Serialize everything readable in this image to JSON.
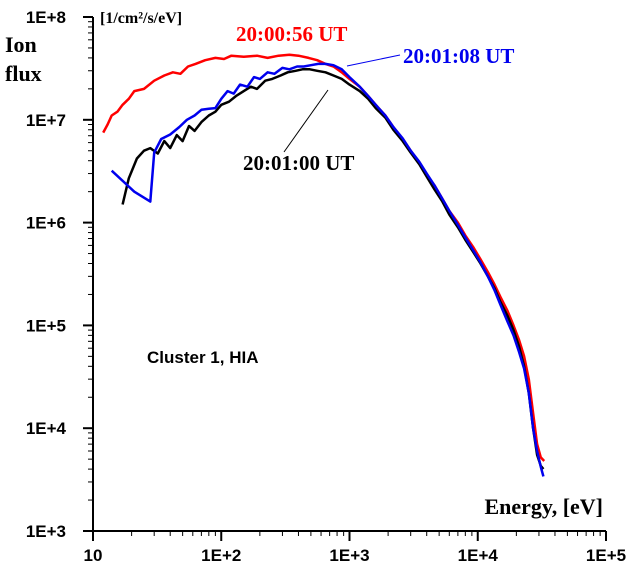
{
  "chart_data": {
    "type": "line",
    "x_scale": "log",
    "y_scale": "log",
    "xlim": [
      10,
      100000
    ],
    "ylim": [
      1000,
      100000000
    ],
    "x_ticks": [
      10,
      100,
      1000,
      10000,
      100000
    ],
    "x_tick_labels": [
      "10",
      "1E+2",
      "1E+3",
      "1E+4",
      "1E+5"
    ],
    "y_ticks": [
      1000,
      10000,
      100000,
      1000000,
      10000000,
      100000000
    ],
    "y_tick_labels": [
      "1E+3",
      "1E+4",
      "1E+5",
      "1E+6",
      "1E+7",
      "1E+8"
    ],
    "ylabel_line1": "Ion",
    "ylabel_line2": "flux",
    "yunit": "[1/cm²/s/eV]",
    "xlabel": "Energy, [eV]",
    "annotation": "Cluster 1, HIA",
    "grid": false,
    "series": [
      {
        "name": "20:00:56 UT",
        "color": "#ff0000",
        "points": [
          [
            12,
            7500000
          ],
          [
            13,
            9000000
          ],
          [
            14,
            11000000
          ],
          [
            15.5,
            12000000
          ],
          [
            17,
            14000000
          ],
          [
            19,
            16000000
          ],
          [
            21,
            19000000
          ],
          [
            25,
            20000000
          ],
          [
            30,
            24000000
          ],
          [
            36,
            27000000
          ],
          [
            42,
            29000000
          ],
          [
            48,
            28000000
          ],
          [
            55,
            33000000
          ],
          [
            63,
            35000000
          ],
          [
            75,
            38000000
          ],
          [
            90,
            40000000
          ],
          [
            105,
            39000000
          ],
          [
            120,
            42000000
          ],
          [
            150,
            41000000
          ],
          [
            190,
            42000000
          ],
          [
            230,
            40000000
          ],
          [
            280,
            42000000
          ],
          [
            340,
            43000000
          ],
          [
            400,
            42000000
          ],
          [
            480,
            40000000
          ],
          [
            560,
            38000000
          ],
          [
            650,
            35000000
          ],
          [
            750,
            33000000
          ],
          [
            870,
            29000000
          ],
          [
            1000,
            25000000
          ],
          [
            1200,
            21000000
          ],
          [
            1400,
            17000000
          ],
          [
            1600,
            14000000
          ],
          [
            1900,
            11000000
          ],
          [
            2200,
            8500000
          ],
          [
            2600,
            6500000
          ],
          [
            3000,
            5000000
          ],
          [
            3500,
            3800000
          ],
          [
            4000,
            2900000
          ],
          [
            4600,
            2300000
          ],
          [
            5300,
            1700000
          ],
          [
            6000,
            1300000
          ],
          [
            7000,
            1000000
          ],
          [
            8000,
            750000
          ],
          [
            9200,
            580000
          ],
          [
            10500,
            440000
          ],
          [
            12000,
            330000
          ],
          [
            13500,
            250000
          ],
          [
            15000,
            190000
          ],
          [
            17000,
            140000
          ],
          [
            19000,
            100000
          ],
          [
            21000,
            72000
          ],
          [
            23000,
            50000
          ],
          [
            25000,
            30000
          ],
          [
            27000,
            14000
          ],
          [
            29000,
            7000
          ],
          [
            31000,
            5200
          ],
          [
            33000,
            4800
          ]
        ]
      },
      {
        "name": "20:01:00 UT",
        "color": "#000000",
        "points": [
          [
            17,
            1500000
          ],
          [
            19,
            2700000
          ],
          [
            22,
            4200000
          ],
          [
            25,
            5000000
          ],
          [
            28,
            5300000
          ],
          [
            32,
            4700000
          ],
          [
            36,
            6200000
          ],
          [
            40,
            5300000
          ],
          [
            45,
            7100000
          ],
          [
            50,
            6200000
          ],
          [
            56,
            8700000
          ],
          [
            62,
            7800000
          ],
          [
            70,
            9500000
          ],
          [
            80,
            11000000
          ],
          [
            90,
            12000000
          ],
          [
            100,
            14000000
          ],
          [
            115,
            15000000
          ],
          [
            130,
            17000000
          ],
          [
            150,
            19000000
          ],
          [
            170,
            21000000
          ],
          [
            190,
            20000000
          ],
          [
            220,
            24000000
          ],
          [
            250,
            25000000
          ],
          [
            290,
            27000000
          ],
          [
            330,
            29000000
          ],
          [
            380,
            30000000
          ],
          [
            430,
            31000000
          ],
          [
            490,
            31000000
          ],
          [
            560,
            30000000
          ],
          [
            650,
            29000000
          ],
          [
            750,
            27000000
          ],
          [
            870,
            25000000
          ],
          [
            1000,
            22000000
          ],
          [
            1200,
            19000000
          ],
          [
            1400,
            16000000
          ],
          [
            1600,
            13000000
          ],
          [
            1900,
            10500000
          ],
          [
            2200,
            8000000
          ],
          [
            2600,
            6200000
          ],
          [
            3000,
            4800000
          ],
          [
            3500,
            3700000
          ],
          [
            4000,
            2800000
          ],
          [
            4600,
            2100000
          ],
          [
            5300,
            1600000
          ],
          [
            6000,
            1200000
          ],
          [
            7000,
            900000
          ],
          [
            8000,
            680000
          ],
          [
            9200,
            520000
          ],
          [
            10500,
            400000
          ],
          [
            12000,
            300000
          ],
          [
            13500,
            230000
          ],
          [
            15000,
            170000
          ],
          [
            17000,
            125000
          ],
          [
            19000,
            90000
          ],
          [
            21000,
            62000
          ],
          [
            23000,
            40000
          ],
          [
            25000,
            22000
          ],
          [
            27000,
            10000
          ],
          [
            29000,
            5500
          ],
          [
            31000,
            4300
          ],
          [
            32500,
            4000
          ]
        ]
      },
      {
        "name": "20:01:08 UT",
        "color": "#0000ee",
        "points": [
          [
            14,
            3200000
          ],
          [
            21,
            2000000
          ],
          [
            28,
            1600000
          ],
          [
            30,
            4800000
          ],
          [
            34,
            6500000
          ],
          [
            40,
            7200000
          ],
          [
            47,
            8500000
          ],
          [
            54,
            10000000
          ],
          [
            62,
            11000000
          ],
          [
            70,
            12500000
          ],
          [
            80,
            12800000
          ],
          [
            90,
            13000000
          ],
          [
            100,
            16000000
          ],
          [
            112,
            19000000
          ],
          [
            125,
            18000000
          ],
          [
            140,
            22000000
          ],
          [
            160,
            21000000
          ],
          [
            180,
            26000000
          ],
          [
            200,
            25000000
          ],
          [
            230,
            29000000
          ],
          [
            260,
            28000000
          ],
          [
            300,
            32000000
          ],
          [
            340,
            31000000
          ],
          [
            390,
            33000000
          ],
          [
            440,
            33000000
          ],
          [
            500,
            34000000
          ],
          [
            570,
            35000000
          ],
          [
            650,
            35000000
          ],
          [
            750,
            34000000
          ],
          [
            870,
            31000000
          ],
          [
            1000,
            26000000
          ],
          [
            1200,
            21000000
          ],
          [
            1400,
            17000000
          ],
          [
            1600,
            14000000
          ],
          [
            1900,
            11000000
          ],
          [
            2200,
            8500000
          ],
          [
            2600,
            6600000
          ],
          [
            3000,
            5000000
          ],
          [
            3500,
            3900000
          ],
          [
            4000,
            3000000
          ],
          [
            4600,
            2300000
          ],
          [
            5300,
            1700000
          ],
          [
            6000,
            1300000
          ],
          [
            7000,
            950000
          ],
          [
            8000,
            720000
          ],
          [
            9200,
            540000
          ],
          [
            10500,
            410000
          ],
          [
            12000,
            300000
          ],
          [
            13500,
            220000
          ],
          [
            15000,
            160000
          ],
          [
            17000,
            110000
          ],
          [
            19000,
            80000
          ],
          [
            21000,
            55000
          ],
          [
            23000,
            38000
          ],
          [
            25000,
            22000
          ],
          [
            27000,
            10000
          ],
          [
            29000,
            6000
          ],
          [
            31000,
            4200
          ],
          [
            32500,
            3400
          ]
        ]
      }
    ]
  }
}
